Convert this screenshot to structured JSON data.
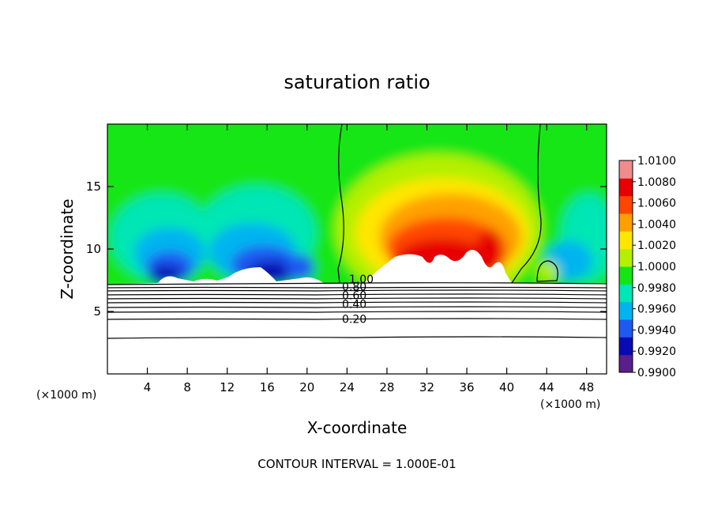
{
  "chart_data": {
    "type": "heatmap",
    "title": "saturation ratio",
    "xlabel": "X-coordinate",
    "ylabel": "Z-coordinate",
    "x_unit_left": "(×1000 m)",
    "x_unit_right": "(×1000 m)",
    "x_range": [
      0,
      50
    ],
    "y_range": [
      0,
      20
    ],
    "x_ticks": [
      4,
      8,
      12,
      16,
      20,
      24,
      28,
      32,
      36,
      40,
      44,
      48
    ],
    "y_ticks": [
      5,
      10,
      15
    ],
    "colorbar": {
      "min": 0.99,
      "max": 1.01,
      "labels": [
        "1.0100",
        "1.0080",
        "1.0060",
        "1.0040",
        "1.0020",
        "1.0000",
        "0.9980",
        "0.9960",
        "0.9940",
        "0.9920",
        "0.9900"
      ],
      "colors": [
        "#5a1f8a",
        "#0a0ab4",
        "#1e5af0",
        "#00b4f0",
        "#00e6b4",
        "#14e614",
        "#b4f000",
        "#ffe600",
        "#ffa000",
        "#ff4600",
        "#e60000",
        "#f08c8c"
      ]
    },
    "contour_labels": [
      {
        "text": "0.80",
        "x": 23.5,
        "y": 7.0
      },
      {
        "text": "0.60",
        "x": 23.5,
        "y": 6.3
      },
      {
        "text": "0.40",
        "x": 23.5,
        "y": 5.6
      },
      {
        "text": "0.20",
        "x": 23.5,
        "y": 4.4
      },
      {
        "text": "1.00",
        "x": 24.2,
        "y": 7.6
      }
    ],
    "contour_interval_note": "CONTOUR INTERVAL = 1.000E-01"
  }
}
